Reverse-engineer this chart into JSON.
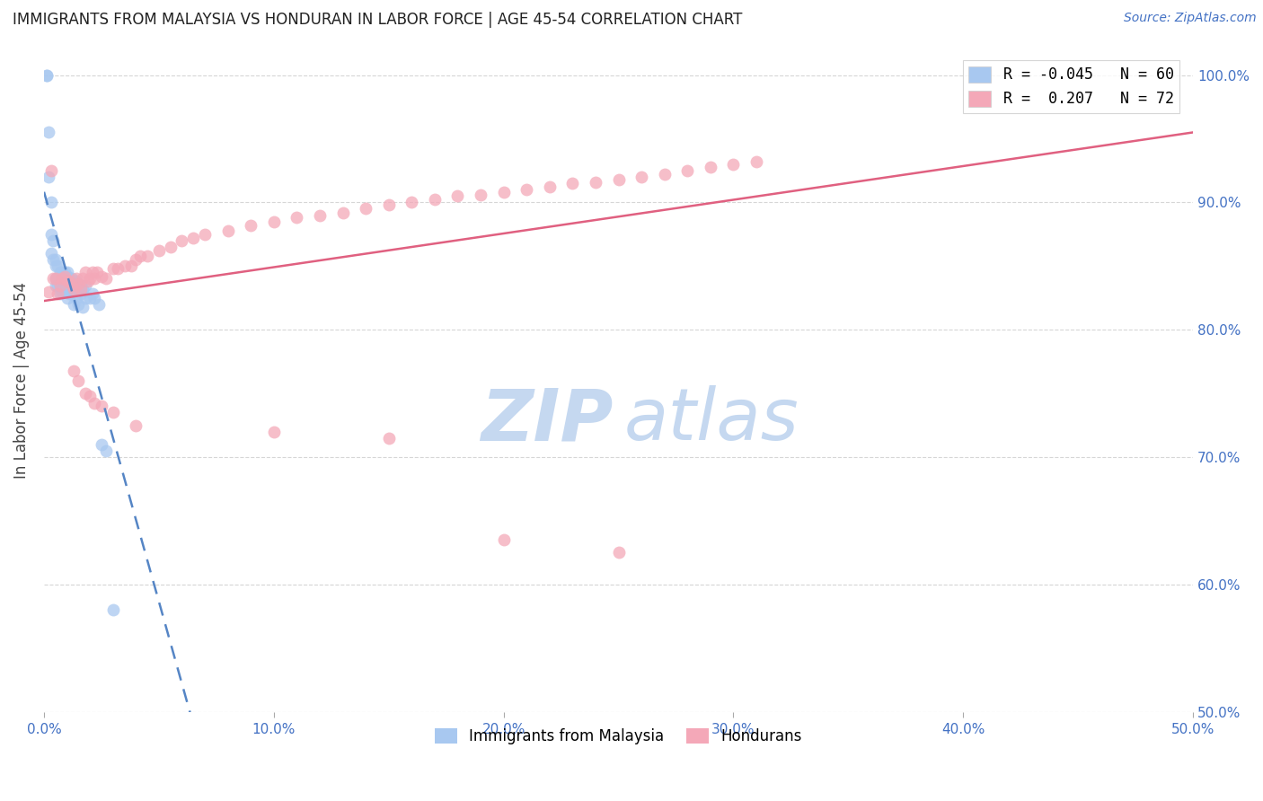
{
  "title": "IMMIGRANTS FROM MALAYSIA VS HONDURAN IN LABOR FORCE | AGE 45-54 CORRELATION CHART",
  "source": "Source: ZipAtlas.com",
  "ylabel": "In Labor Force | Age 45-54",
  "x_tick_labels": [
    "0.0%",
    "10.0%",
    "20.0%",
    "30.0%",
    "40.0%",
    "50.0%"
  ],
  "x_tick_values": [
    0.0,
    0.1,
    0.2,
    0.3,
    0.4,
    0.5
  ],
  "y_tick_labels": [
    "50.0%",
    "60.0%",
    "70.0%",
    "80.0%",
    "90.0%",
    "100.0%"
  ],
  "y_tick_values": [
    0.5,
    0.6,
    0.7,
    0.8,
    0.9,
    1.0
  ],
  "xlim": [
    0.0,
    0.5
  ],
  "ylim": [
    0.5,
    1.02
  ],
  "legend_entries": [
    {
      "label": "R = -0.045   N = 60",
      "color": "#a8c8f0"
    },
    {
      "label": "R =  0.207   N = 72",
      "color": "#f4a8b8"
    }
  ],
  "malaysia_color": "#a8c8f0",
  "honduras_color": "#f4a8b8",
  "malaysia_line_color": "#5585c5",
  "honduras_line_color": "#e06080",
  "watermark_zip_color": "#c5d8f0",
  "watermark_atlas_color": "#c5d8f0",
  "malaysia_x": [
    0.001,
    0.001,
    0.002,
    0.002,
    0.003,
    0.003,
    0.003,
    0.004,
    0.004,
    0.005,
    0.005,
    0.005,
    0.005,
    0.006,
    0.006,
    0.006,
    0.007,
    0.007,
    0.007,
    0.007,
    0.008,
    0.008,
    0.008,
    0.008,
    0.009,
    0.009,
    0.009,
    0.009,
    0.01,
    0.01,
    0.01,
    0.01,
    0.01,
    0.01,
    0.011,
    0.011,
    0.011,
    0.012,
    0.012,
    0.012,
    0.013,
    0.013,
    0.013,
    0.014,
    0.014,
    0.015,
    0.015,
    0.016,
    0.016,
    0.017,
    0.017,
    0.018,
    0.018,
    0.02,
    0.021,
    0.022,
    0.024,
    0.025,
    0.027,
    0.03
  ],
  "malaysia_y": [
    1.0,
    1.0,
    0.955,
    0.92,
    0.9,
    0.875,
    0.86,
    0.87,
    0.855,
    0.855,
    0.85,
    0.84,
    0.835,
    0.85,
    0.84,
    0.835,
    0.845,
    0.84,
    0.835,
    0.828,
    0.845,
    0.84,
    0.835,
    0.83,
    0.845,
    0.84,
    0.838,
    0.832,
    0.845,
    0.842,
    0.838,
    0.835,
    0.83,
    0.825,
    0.84,
    0.835,
    0.828,
    0.84,
    0.835,
    0.828,
    0.838,
    0.832,
    0.82,
    0.838,
    0.825,
    0.832,
    0.82,
    0.835,
    0.828,
    0.832,
    0.818,
    0.835,
    0.825,
    0.825,
    0.828,
    0.825,
    0.82,
    0.71,
    0.705,
    0.58
  ],
  "honduras_x": [
    0.002,
    0.003,
    0.004,
    0.005,
    0.006,
    0.007,
    0.008,
    0.009,
    0.01,
    0.011,
    0.012,
    0.013,
    0.014,
    0.015,
    0.016,
    0.017,
    0.018,
    0.019,
    0.02,
    0.021,
    0.022,
    0.023,
    0.025,
    0.027,
    0.03,
    0.032,
    0.035,
    0.038,
    0.04,
    0.042,
    0.045,
    0.05,
    0.055,
    0.06,
    0.065,
    0.07,
    0.08,
    0.09,
    0.1,
    0.11,
    0.12,
    0.13,
    0.14,
    0.15,
    0.16,
    0.17,
    0.18,
    0.19,
    0.2,
    0.21,
    0.22,
    0.23,
    0.24,
    0.25,
    0.26,
    0.27,
    0.28,
    0.29,
    0.3,
    0.31,
    0.013,
    0.015,
    0.018,
    0.02,
    0.022,
    0.025,
    0.03,
    0.04,
    0.1,
    0.15,
    0.2,
    0.25
  ],
  "honduras_y": [
    0.83,
    0.925,
    0.84,
    0.84,
    0.828,
    0.835,
    0.84,
    0.842,
    0.838,
    0.838,
    0.835,
    0.832,
    0.84,
    0.836,
    0.832,
    0.84,
    0.845,
    0.838,
    0.84,
    0.845,
    0.84,
    0.845,
    0.842,
    0.84,
    0.848,
    0.848,
    0.85,
    0.85,
    0.855,
    0.858,
    0.858,
    0.862,
    0.865,
    0.87,
    0.872,
    0.875,
    0.878,
    0.882,
    0.885,
    0.888,
    0.89,
    0.892,
    0.895,
    0.898,
    0.9,
    0.902,
    0.905,
    0.906,
    0.908,
    0.91,
    0.912,
    0.915,
    0.916,
    0.918,
    0.92,
    0.922,
    0.925,
    0.928,
    0.93,
    0.932,
    0.768,
    0.76,
    0.75,
    0.748,
    0.742,
    0.74,
    0.735,
    0.725,
    0.72,
    0.715,
    0.635,
    0.625
  ]
}
